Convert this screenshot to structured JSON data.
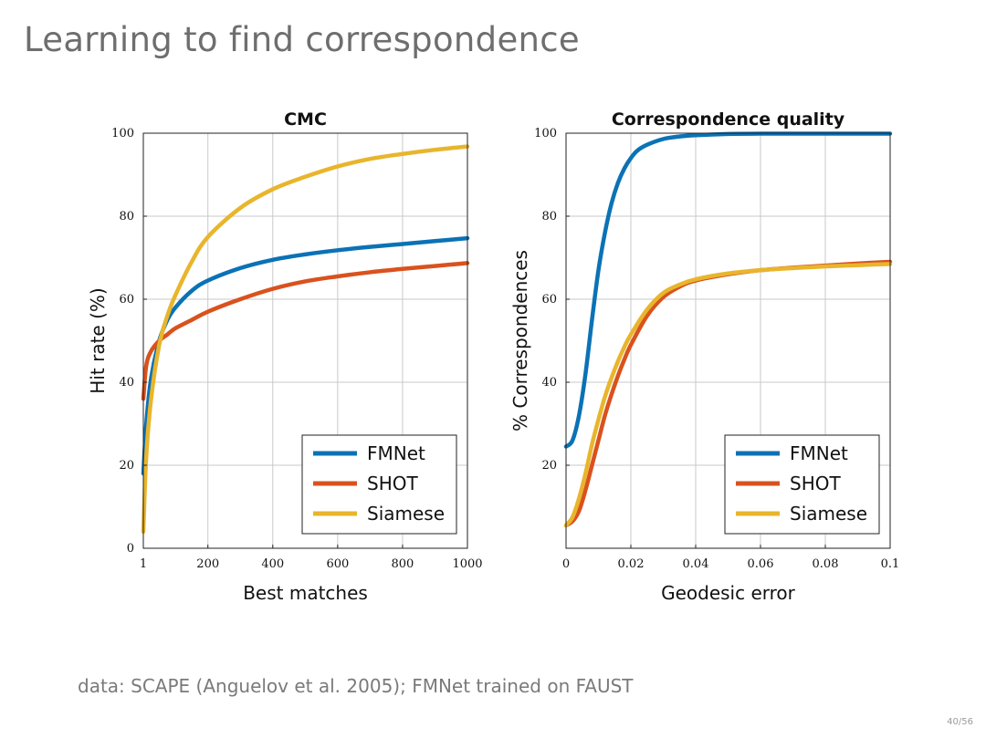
{
  "slide": {
    "title": "Learning to find correspondence",
    "footer": "data: SCAPE (Anguelov et al. 2005); FMNet trained on FAUST",
    "page_number": "40/56"
  },
  "colors": {
    "FMNet": "#0b72b5",
    "SHOT": "#d9521e",
    "Siamese": "#e8b52c"
  },
  "chart_data": [
    {
      "type": "line",
      "title": "CMC",
      "xlabel": "Best matches",
      "ylabel": "Hit rate (%)",
      "xlim": [
        1,
        1000
      ],
      "ylim": [
        0,
        100
      ],
      "xticks": [
        1,
        200,
        400,
        600,
        800,
        1000
      ],
      "xticklabels": [
        "1",
        "200",
        "400",
        "600",
        "800",
        "1000"
      ],
      "yticks": [
        0,
        20,
        40,
        60,
        80,
        100
      ],
      "grid": true,
      "legend_position": "bottom-right",
      "series": [
        {
          "name": "FMNet",
          "color": "#0b72b5",
          "x": [
            1,
            10,
            25,
            50,
            75,
            100,
            150,
            200,
            300,
            400,
            500,
            600,
            700,
            800,
            900,
            1000
          ],
          "y": [
            18,
            30,
            41,
            50,
            55,
            58,
            62,
            64.5,
            67.5,
            69.5,
            70.8,
            71.8,
            72.6,
            73.3,
            74,
            74.7
          ]
        },
        {
          "name": "SHOT",
          "color": "#d9521e",
          "x": [
            1,
            10,
            25,
            50,
            75,
            100,
            150,
            200,
            300,
            400,
            500,
            600,
            700,
            800,
            900,
            1000
          ],
          "y": [
            36,
            44,
            47.5,
            50,
            51.5,
            53,
            55,
            57,
            60,
            62.5,
            64.3,
            65.5,
            66.5,
            67.3,
            68,
            68.7
          ]
        },
        {
          "name": "Siamese",
          "color": "#e8b52c",
          "x": [
            1,
            10,
            25,
            50,
            75,
            100,
            150,
            200,
            300,
            400,
            500,
            600,
            700,
            800,
            900,
            1000
          ],
          "y": [
            4,
            22,
            36,
            49,
            56,
            61,
            69,
            75,
            82,
            86.5,
            89.5,
            92,
            93.8,
            95,
            96,
            96.8
          ]
        }
      ]
    },
    {
      "type": "line",
      "title": "Correspondence quality",
      "xlabel": "Geodesic error",
      "ylabel": "% Correspondences",
      "xlim": [
        0,
        0.1
      ],
      "ylim": [
        0,
        100
      ],
      "xticks": [
        0,
        0.02,
        0.04,
        0.06,
        0.08,
        0.1
      ],
      "xticklabels": [
        "0",
        "0.02",
        "0.04",
        "0.06",
        "0.08",
        "0.1"
      ],
      "yticks": [
        20,
        40,
        60,
        80,
        100
      ],
      "grid": true,
      "legend_position": "bottom-right",
      "series": [
        {
          "name": "FMNet",
          "color": "#0b72b5",
          "x": [
            0,
            0.002,
            0.004,
            0.006,
            0.008,
            0.01,
            0.012,
            0.014,
            0.016,
            0.018,
            0.02,
            0.022,
            0.025,
            0.03,
            0.035,
            0.04,
            0.05,
            0.06,
            0.08,
            0.1
          ],
          "y": [
            24.5,
            26,
            32,
            42,
            55,
            67,
            76,
            83,
            88,
            91.5,
            94,
            95.8,
            97.2,
            98.6,
            99.2,
            99.5,
            99.8,
            99.9,
            99.9,
            99.9
          ]
        },
        {
          "name": "SHOT",
          "color": "#d9521e",
          "x": [
            0,
            0.002,
            0.004,
            0.006,
            0.008,
            0.01,
            0.012,
            0.014,
            0.016,
            0.018,
            0.02,
            0.025,
            0.03,
            0.035,
            0.04,
            0.05,
            0.06,
            0.07,
            0.08,
            0.09,
            0.1
          ],
          "y": [
            5.5,
            6.5,
            9,
            14,
            20,
            26,
            32,
            37,
            41.5,
            45.5,
            49,
            56,
            60.5,
            63,
            64.5,
            66,
            67,
            67.6,
            68.1,
            68.6,
            69
          ]
        },
        {
          "name": "Siamese",
          "color": "#e8b52c",
          "x": [
            0,
            0.002,
            0.004,
            0.006,
            0.008,
            0.01,
            0.012,
            0.014,
            0.016,
            0.018,
            0.02,
            0.025,
            0.03,
            0.035,
            0.04,
            0.05,
            0.06,
            0.07,
            0.08,
            0.09,
            0.1
          ],
          "y": [
            5.5,
            7.5,
            12,
            18,
            25,
            31,
            36.5,
            41,
            45,
            48.5,
            51.5,
            57.5,
            61.5,
            63.5,
            64.8,
            66.2,
            67,
            67.5,
            67.9,
            68.2,
            68.5
          ]
        }
      ]
    }
  ]
}
